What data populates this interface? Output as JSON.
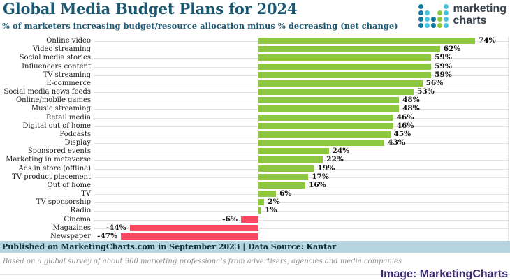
{
  "header": {
    "title": "Global Media Budget Plans for 2024",
    "subtitle": "% of marketers increasing budget/resource allocation minus % decreasing (net change)",
    "logo": {
      "line1": "marketing",
      "line2": "charts"
    }
  },
  "chart_data": {
    "type": "bar",
    "orientation": "horizontal",
    "title": "Global Media Budget Plans for 2024",
    "subtitle": "% of marketers increasing budget/resource allocation minus % decreasing (net change)",
    "unit": "%",
    "xlim": [
      -56,
      85
    ],
    "grid": true,
    "categories": [
      "Online video",
      "Video streaming",
      "Social media stories",
      "Influencers content",
      "TV streaming",
      "E-commerce",
      "Social media news feeds",
      "Online/mobile games",
      "Music streaming",
      "Retail media",
      "Digital out of home",
      "Podcasts",
      "Display",
      "Sponsored events",
      "Marketing in metaverse",
      "Ads in store (offline)",
      "TV product placement",
      "Out of home",
      "TV",
      "TV sponsorship",
      "Radio",
      "Cinema",
      "Magazines",
      "Newspaper"
    ],
    "values": [
      74,
      62,
      59,
      59,
      59,
      56,
      53,
      48,
      48,
      46,
      46,
      45,
      43,
      24,
      22,
      19,
      17,
      16,
      6,
      2,
      1,
      -6,
      -44,
      -47
    ],
    "positive_color": "#8dc63f",
    "negative_color": "#f9485f"
  },
  "colors": {
    "title_text": "#1b5873",
    "footer_band_bg": "#b7d4e1",
    "footer_band_text": "#0e2f3f",
    "credit_text": "#3d2a6e",
    "logo_dot_dark": "#11799f",
    "logo_dot_cyan": "#45c3df",
    "logo_dot_green": "#8dc63f"
  },
  "footer": {
    "published": "Published on MarketingCharts.com in September 2023 | Data Source: Kantar",
    "note": "Based on a global survey of about 900 marketing professionals from advertisers, agencies and media companies",
    "credit": "Image: MarketingCharts"
  }
}
